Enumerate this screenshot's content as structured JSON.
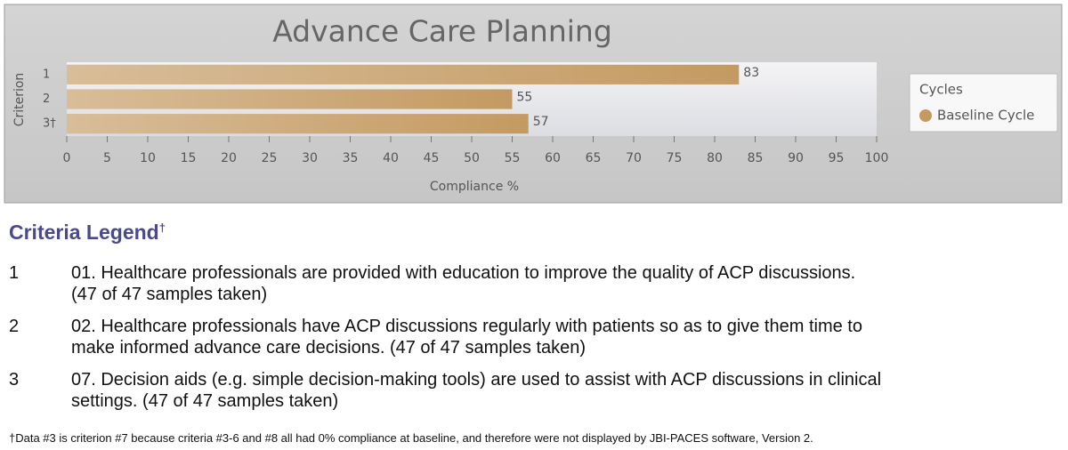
{
  "chart_data": {
    "type": "bar",
    "orientation": "horizontal",
    "title": "Advance Care Planning",
    "categories": [
      "1",
      "2",
      "3†"
    ],
    "series": [
      {
        "name": "Baseline Cycle",
        "color": "#c49a62",
        "values": [
          83,
          55,
          57
        ]
      }
    ],
    "x_label": "Compliance %",
    "y_label": "Criterion",
    "legend_title": "Cycles",
    "legend": "right",
    "xlim": [
      0,
      100
    ],
    "xticks": [
      0,
      5,
      10,
      15,
      20,
      25,
      30,
      35,
      40,
      45,
      50,
      55,
      60,
      65,
      70,
      75,
      80,
      85,
      90,
      95,
      100
    ]
  },
  "criteria_legend": {
    "title": "Criteria Legend",
    "title_mark": "†",
    "items": [
      {
        "number": "1",
        "lines": [
          "01.  Healthcare professionals are provided with education to improve the quality of ACP discussions.",
          "(47 of 47 samples taken)"
        ]
      },
      {
        "number": "2",
        "lines": [
          "02.  Healthcare professionals have ACP discussions regularly with patients so as to give them time to",
          "make informed advance care decisions. (47 of 47 samples taken)"
        ]
      },
      {
        "number": "3",
        "lines": [
          "07.  Decision aids (e.g. simple decision-making tools) are used to assist with ACP discussions in clinical",
          "settings.  (47 of 47 samples taken)"
        ]
      }
    ]
  },
  "footnote": "†Data #3 is criterion #7 because criteria #3-6 and #8 all had 0% compliance at baseline, and therefore were not displayed by JBI-PACES software, Version 2."
}
